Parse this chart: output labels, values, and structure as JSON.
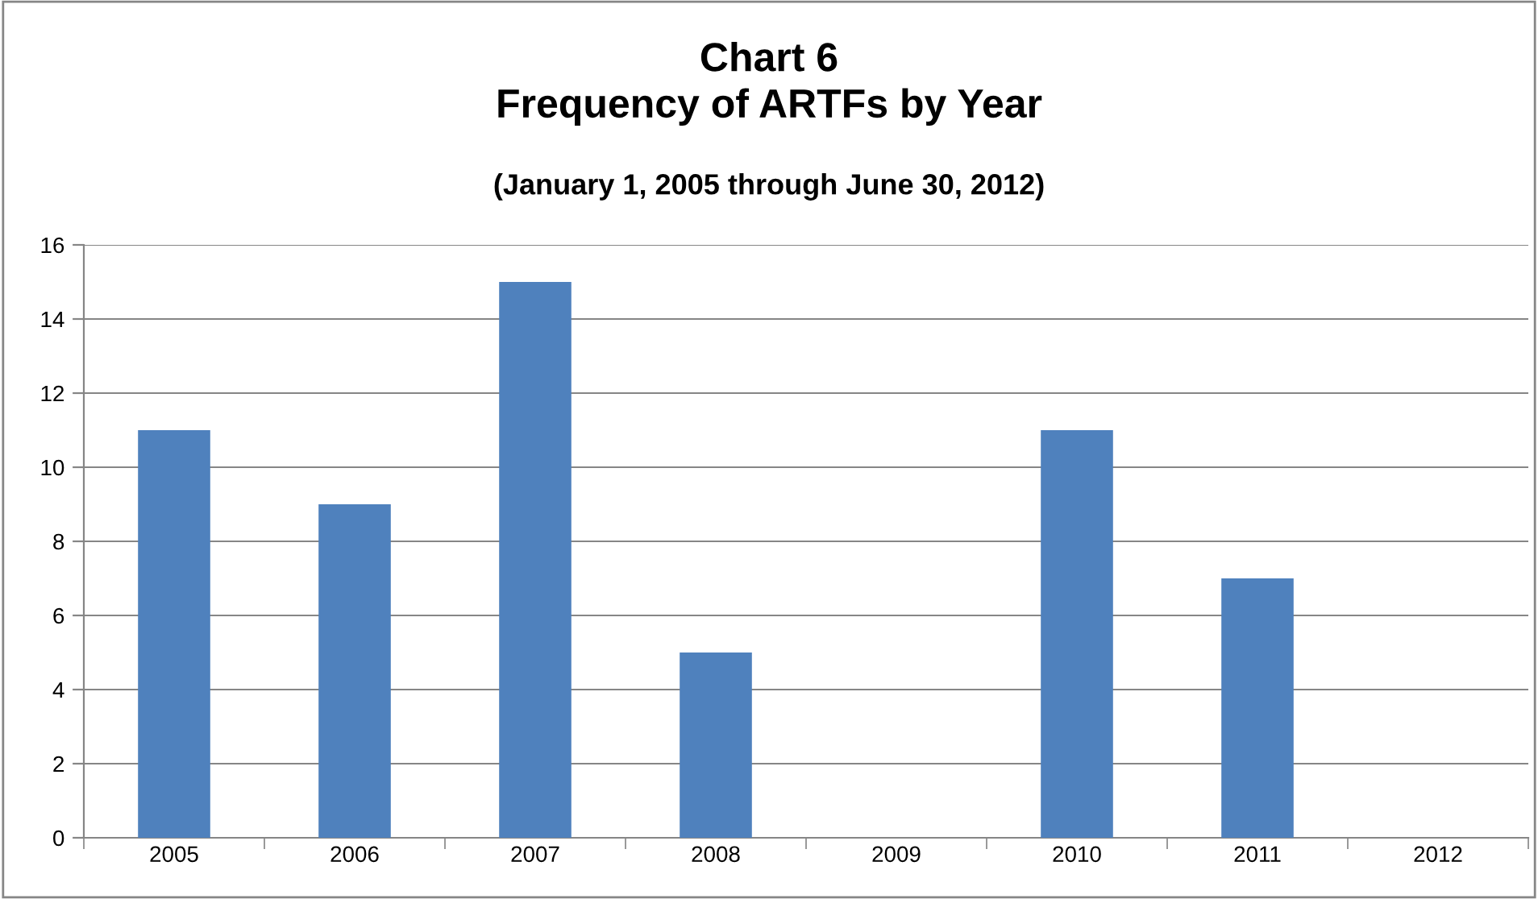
{
  "chart_data": {
    "type": "bar",
    "title": "Chart 6\nFrequency of ARTFs by Year",
    "subtitle": "(January 1, 2005 through June 30, 2012)",
    "categories": [
      "2005",
      "2006",
      "2007",
      "2008",
      "2009",
      "2010",
      "2011",
      "2012"
    ],
    "values": [
      11,
      9,
      15,
      5,
      0,
      11,
      7,
      0
    ],
    "color": "#4f81bd",
    "ylim": [
      0,
      16
    ],
    "yticks": [
      0,
      2,
      4,
      6,
      8,
      10,
      12,
      14,
      16
    ],
    "grid": "y",
    "legend": false
  }
}
